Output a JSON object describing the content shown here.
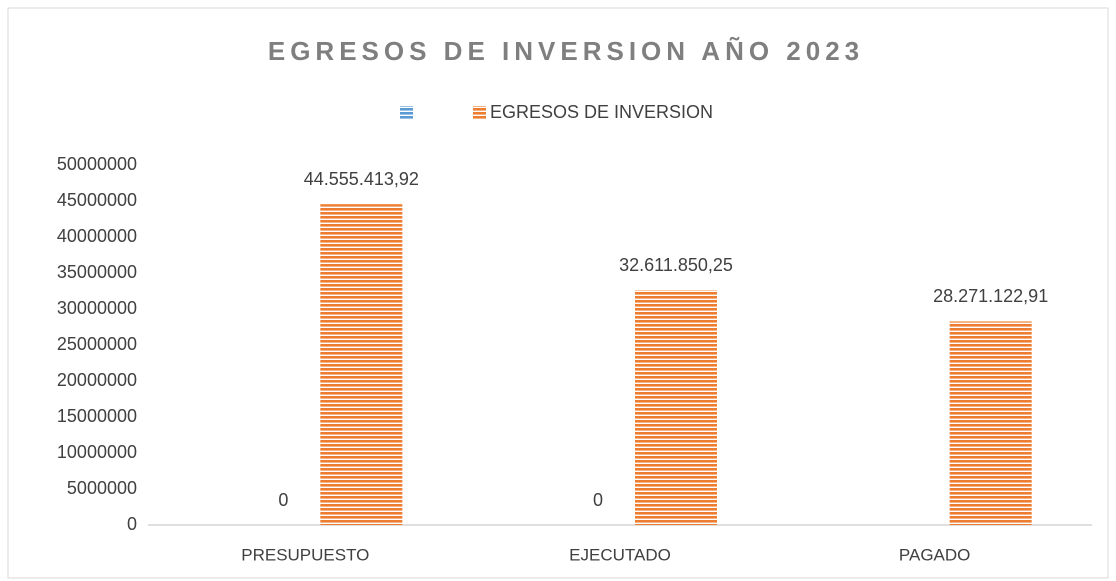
{
  "chart_data": {
    "type": "bar",
    "title": "EGRESOS DE INVERSION AÑO 2023",
    "categories": [
      "PRESUPUESTO",
      "EJECUTADO",
      "PAGADO"
    ],
    "series": [
      {
        "color": "#5b9bd5",
        "values": [
          0,
          0,
          null
        ],
        "value_labels": [
          "0",
          "0",
          null
        ]
      },
      {
        "name": "EGRESOS DE INVERSION",
        "color": "#ed7d31",
        "values": [
          44555413.92,
          32611850.25,
          28271122.91
        ],
        "value_labels": [
          "44.555.413,92",
          "32.611.850,25",
          "28.271.122,91"
        ]
      }
    ],
    "ylim": [
      0,
      50000000
    ],
    "yticks": [
      0,
      5000000,
      10000000,
      15000000,
      20000000,
      25000000,
      30000000,
      35000000,
      40000000,
      45000000,
      50000000
    ],
    "legend": "top",
    "grid": false
  }
}
